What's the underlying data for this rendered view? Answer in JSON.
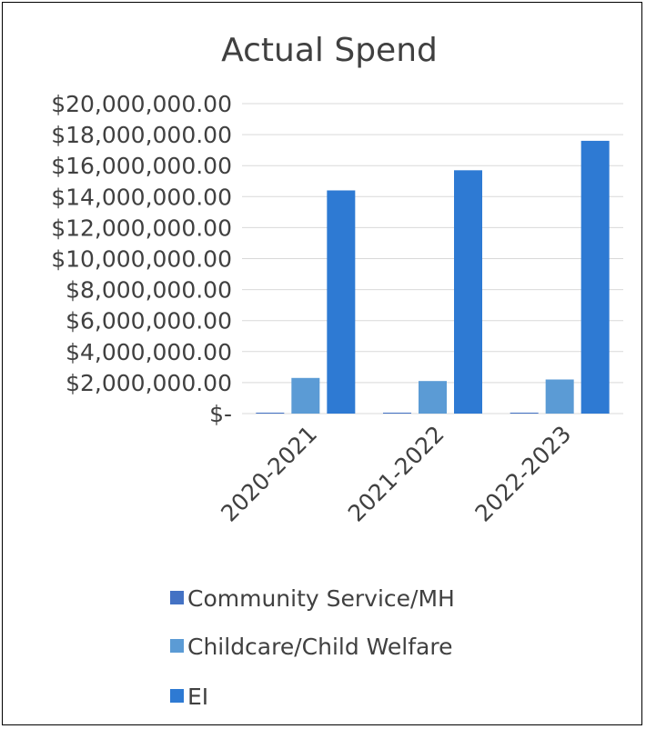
{
  "chart_data": {
    "type": "bar",
    "title": "Actual Spend",
    "categories": [
      "2020-2021",
      "2021-2022",
      "2022-2023"
    ],
    "series": [
      {
        "name": "Community Service/MH",
        "color": "#4472c4",
        "values": [
          60000,
          60000,
          60000
        ]
      },
      {
        "name": "Childcare/Child Welfare",
        "color": "#5b9bd5",
        "values": [
          2300000,
          2100000,
          2200000
        ]
      },
      {
        "name": "EI",
        "color": "#2e7ad3",
        "values": [
          14400000,
          15700000,
          17600000
        ]
      }
    ],
    "y_ticks": [
      "$-",
      "$2,000,000.00",
      "$4,000,000.00",
      "$6,000,000.00",
      "$8,000,000.00",
      "$10,000,000.00",
      "$12,000,000.00",
      "$14,000,000.00",
      "$16,000,000.00",
      "$18,000,000.00",
      "$20,000,000.00"
    ],
    "ylim": [
      0,
      20000000
    ],
    "grid": true,
    "legend_position": "bottom"
  }
}
